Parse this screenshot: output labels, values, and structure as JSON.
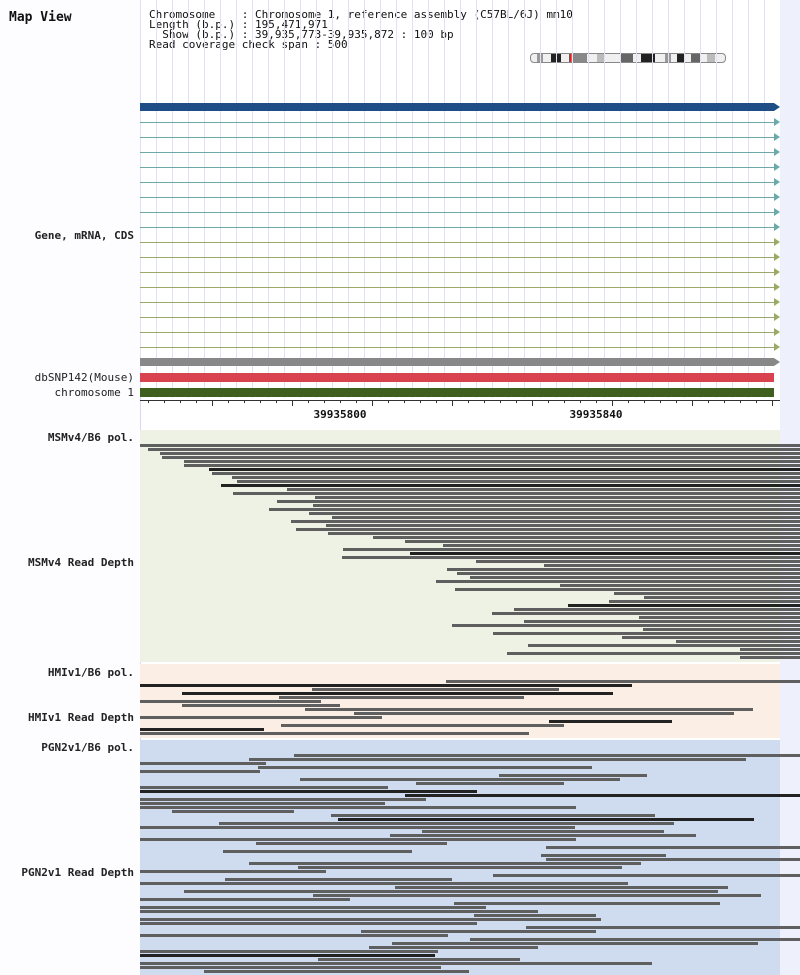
{
  "title": "Map View",
  "header": {
    "chromosome_key": "Chromosome    ",
    "chromosome_value": ": Chromosome 1, reference assembly (C57BL/6J) mm10",
    "length_key": "Length (b.p.) ",
    "length_value": ": 195,471,971",
    "show_key": "  Show (b.p.) ",
    "show_value": ": 39,935,773-39,935,872 : 100 bp",
    "coverage_line": "Read coverage check span : 500"
  },
  "tracks": {
    "gene": "Gene, mRNA, CDS",
    "dbsnp": "dbSNP142(Mouse)",
    "chromosome": "chromosome 1",
    "msm_pol": "MSMv4/B6 pol.",
    "msm_depth": "MSMv4 Read Depth",
    "hmi_pol": "HMIv1/B6 pol.",
    "hmi_depth": "HMIv1 Read Depth",
    "pgn_pol": "PGN2v1/B6 pol.",
    "pgn_depth": "PGN2v1 Read Depth"
  },
  "ruler": {
    "ticks": [
      "39935800",
      "39935840"
    ]
  },
  "colors": {
    "gene_main": "#1f4e86",
    "mrna_teal": "#6ea8a8",
    "mrna_olive": "#9aa86a",
    "snp_gray": "#888888",
    "dbsnp_red": "#d9434f",
    "chromosome_green": "#3f5f1f",
    "msm_bg": "#eef2e4",
    "hmi_bg": "#fbeee4",
    "pgn_bg": "#cfdcef",
    "read": "#5f5f5f"
  }
}
